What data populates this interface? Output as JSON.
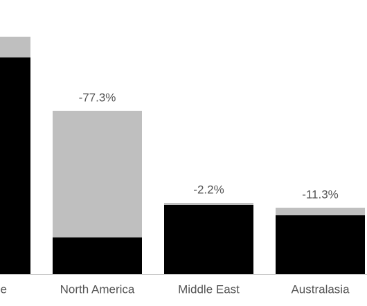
{
  "chart_data": {
    "type": "bar",
    "categories": [
      "e",
      "North America",
      "Middle East",
      "Australasia"
    ],
    "series": [
      {
        "color": "#bfbfbf",
        "values": [
          343,
          236,
          103,
          96
        ]
      },
      {
        "color": "#000000",
        "values": [
          313,
          53,
          100,
          85
        ]
      }
    ],
    "change": {
      "values": [
        null,
        -77.3,
        -2.2,
        -11.3
      ],
      "value_labels": [
        null,
        "-77.3%",
        "-2.2%",
        "-11.3%"
      ]
    },
    "ylim": [
      0,
      396
    ]
  }
}
